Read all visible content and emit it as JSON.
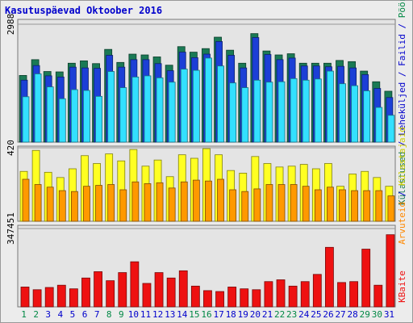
{
  "title": "Kasutuspäevad Oktoober 2016",
  "colors": {
    "background": "#ececec",
    "plot_bg": "#e4e4e4",
    "title": "#0000cc",
    "weekend_label": "#008844",
    "weekday_label": "#0000cc",
    "kulastused": "#1a7a55",
    "leheküljed": "#1c3fd6",
    "failid": "#33e0ff",
    "hosts": "#ffff22",
    "kulastajad": "#ff9900",
    "kbaite": "#ee1111"
  },
  "legend": {
    "top": [
      {
        "text": "Külastused",
        "color": "#1a7a55"
      },
      {
        "text": "Leheküljed",
        "color": "#0000cc"
      },
      {
        "text": "Failid",
        "color": "#0000cc"
      },
      {
        "text": "Pöördumisi",
        "color": "#008844"
      }
    ],
    "separator": " / ",
    "middle": [
      {
        "text": "Arvuteid",
        "color": "#ff8800"
      },
      {
        "text": "Külastajaid",
        "color": "#cccc00"
      }
    ],
    "bottom": "KBaite"
  },
  "chart_data": {
    "type": "bar",
    "categories": [
      "1",
      "2",
      "3",
      "4",
      "5",
      "6",
      "7",
      "8",
      "9",
      "10",
      "11",
      "12",
      "13",
      "14",
      "15",
      "16",
      "17",
      "18",
      "19",
      "20",
      "21",
      "22",
      "23",
      "24",
      "25",
      "26",
      "27",
      "28",
      "29",
      "30",
      "31"
    ],
    "weekend_days": [
      "1",
      "2",
      "8",
      "9",
      "15",
      "16",
      "22",
      "23",
      "29",
      "30"
    ],
    "panels": [
      {
        "name": "requests",
        "ymax_label": "2988",
        "ymax": 2988,
        "series": [
          {
            "name": "Pöördumisi",
            "values": [
              1690,
              2090,
              1790,
              1780,
              2000,
              2060,
              1990,
              2350,
              2020,
              2230,
              2210,
              2160,
              1950,
              2420,
              2280,
              2370,
              2660,
              2330,
              2000,
              2750,
              2310,
              2210,
              2240,
              2000,
              2000,
              2000,
              2070,
              2040,
              1800,
              1530,
              1290
            ]
          },
          {
            "name": "Failid",
            "values": [
              1570,
              1940,
              1680,
              1650,
              1900,
              1880,
              1870,
              2200,
              1900,
              2090,
              2090,
              1990,
              1810,
              2280,
              2140,
              2230,
              2550,
              2200,
              1880,
              2650,
              2220,
              2090,
              2130,
              1930,
              1930,
              1910,
              1920,
              1880,
              1710,
              1360,
              1130
            ]
          },
          {
            "name": "Leheküljed",
            "values": [
              1150,
              1730,
              1400,
              1100,
              1330,
              1310,
              1160,
              1790,
              1380,
              1650,
              1680,
              1630,
              1520,
              1850,
              1820,
              2130,
              1930,
              1500,
              1380,
              1570,
              1520,
              1530,
              1610,
              1570,
              1600,
              1800,
              1480,
              1430,
              1300,
              880,
              680
            ]
          }
        ]
      },
      {
        "name": "visits",
        "ymax_label": "420",
        "ymax": 420,
        "series": [
          {
            "name": "Külastajaid",
            "values": [
              285,
              405,
              280,
              250,
              300,
              375,
              330,
              385,
              345,
              410,
              315,
              350,
              255,
              380,
              360,
              415,
              380,
              290,
              275,
              370,
              330,
              310,
              315,
              325,
              300,
              330,
              200,
              270,
              285,
              250,
              200
            ]
          },
          {
            "name": "Arvuteid",
            "values": [
              240,
              210,
              195,
              175,
              170,
              200,
              205,
              210,
              180,
              225,
              215,
              220,
              190,
              225,
              235,
              230,
              240,
              180,
              170,
              185,
              210,
              210,
              210,
              200,
              180,
              195,
              180,
              175,
              175,
              175,
              145
            ]
          }
        ]
      },
      {
        "name": "kbytes",
        "ymax_label": "347451",
        "ymax": 347451,
        "series": [
          {
            "name": "KBaite",
            "values": [
              88000,
              76000,
              86000,
              96000,
              80000,
              128000,
              156000,
              116000,
              152000,
              200000,
              104000,
              152000,
              128000,
              160000,
              92000,
              72000,
              68000,
              88000,
              80000,
              76000,
              112000,
              120000,
              92000,
              112000,
              144000,
              264000,
              108000,
              112000,
              256000,
              96000,
              320000
            ]
          }
        ]
      }
    ]
  }
}
